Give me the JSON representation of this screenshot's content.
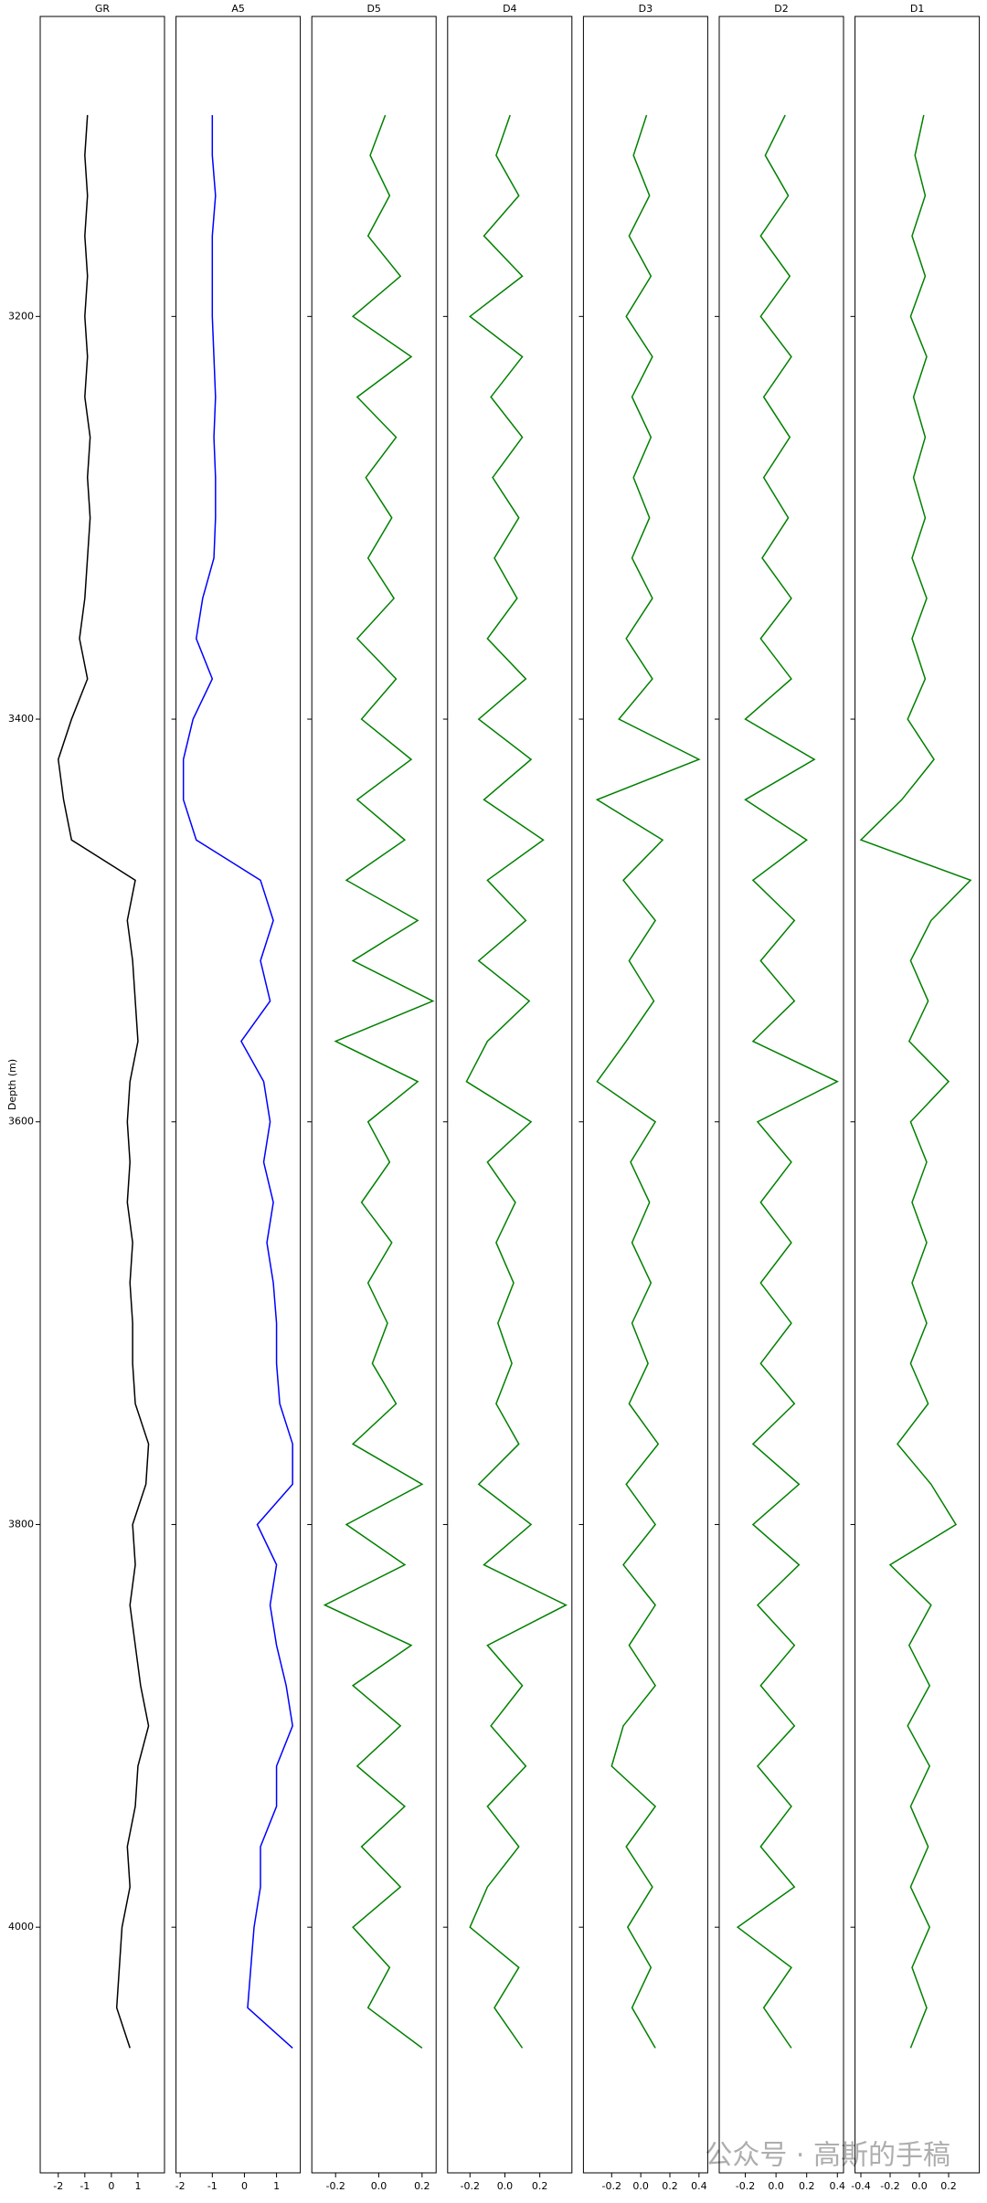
{
  "chart_data": {
    "type": "well_log",
    "ylabel": "Depth (m)",
    "ylim": [
      4122,
      3051
    ],
    "yticks": [
      3200,
      3400,
      3600,
      3800,
      4000
    ],
    "depth": [
      3100,
      3120,
      3140,
      3160,
      3180,
      3200,
      3220,
      3240,
      3260,
      3280,
      3300,
      3320,
      3340,
      3360,
      3380,
      3400,
      3420,
      3440,
      3460,
      3480,
      3500,
      3520,
      3540,
      3560,
      3580,
      3600,
      3620,
      3640,
      3660,
      3680,
      3700,
      3720,
      3740,
      3760,
      3780,
      3800,
      3820,
      3840,
      3860,
      3880,
      3900,
      3920,
      3940,
      3960,
      3980,
      4000,
      4020,
      4040,
      4060
    ],
    "tracks": [
      {
        "title": "GR",
        "color": "#000000",
        "xlim": [
          -2.68,
          2.0
        ],
        "xticks": [
          -2,
          -1,
          0,
          1
        ],
        "values": [
          -0.9,
          -1.0,
          -0.9,
          -1.0,
          -0.9,
          -1.0,
          -0.9,
          -1.0,
          -0.8,
          -0.9,
          -0.8,
          -0.9,
          -1.0,
          -1.2,
          -0.9,
          -1.5,
          -2.0,
          -1.8,
          -1.5,
          0.9,
          0.6,
          0.8,
          0.9,
          1.0,
          0.7,
          0.6,
          0.7,
          0.6,
          0.8,
          0.7,
          0.8,
          0.8,
          0.9,
          1.4,
          1.3,
          0.8,
          0.9,
          0.7,
          0.9,
          1.1,
          1.4,
          1.0,
          0.9,
          0.6,
          0.7,
          0.4,
          0.3,
          0.2,
          0.7
        ]
      },
      {
        "title": "A5",
        "color": "#0000ff",
        "xlim": [
          -2.13,
          1.74
        ],
        "xticks": [
          -2,
          -1,
          0,
          1
        ],
        "values": [
          -1.0,
          -1.0,
          -0.9,
          -1.0,
          -1.0,
          -1.0,
          -0.95,
          -0.9,
          -0.95,
          -0.9,
          -0.9,
          -0.95,
          -1.3,
          -1.5,
          -1.0,
          -1.6,
          -1.9,
          -1.9,
          -1.5,
          0.5,
          0.9,
          0.5,
          0.8,
          -0.1,
          0.6,
          0.8,
          0.6,
          0.9,
          0.7,
          0.9,
          1.0,
          1.0,
          1.1,
          1.5,
          1.5,
          0.4,
          1.0,
          0.8,
          1.0,
          1.3,
          1.5,
          1.0,
          1.0,
          0.5,
          0.5,
          0.3,
          0.2,
          0.1,
          1.5
        ]
      },
      {
        "title": "D5",
        "color": "#008000",
        "xlim": [
          -0.31,
          0.265
        ],
        "xticks": [
          -0.2,
          {
            "value": 0,
            "label": "0.0"
          },
          0.2
        ],
        "values": [
          0.03,
          -0.04,
          0.05,
          -0.05,
          0.1,
          -0.12,
          0.15,
          -0.1,
          0.08,
          -0.06,
          0.06,
          -0.05,
          0.07,
          -0.1,
          0.08,
          -0.08,
          0.15,
          -0.1,
          0.12,
          -0.15,
          0.18,
          -0.12,
          0.25,
          -0.2,
          0.18,
          -0.05,
          0.05,
          -0.08,
          0.06,
          -0.05,
          0.04,
          -0.03,
          0.08,
          -0.12,
          0.2,
          -0.15,
          0.12,
          -0.25,
          0.15,
          -0.12,
          0.1,
          -0.1,
          0.12,
          -0.08,
          0.1,
          -0.12,
          0.05,
          -0.05,
          0.2
        ]
      },
      {
        "title": "D4",
        "color": "#008000",
        "xlim": [
          -0.328,
          0.384
        ],
        "xticks": [
          -0.2,
          {
            "value": 0,
            "label": "0.0"
          },
          0.2
        ],
        "values": [
          0.03,
          -0.05,
          0.08,
          -0.12,
          0.1,
          -0.2,
          0.1,
          -0.08,
          0.1,
          -0.07,
          0.08,
          -0.06,
          0.07,
          -0.1,
          0.12,
          -0.15,
          0.15,
          -0.12,
          0.22,
          -0.1,
          0.12,
          -0.15,
          0.14,
          -0.1,
          -0.22,
          0.15,
          -0.1,
          0.06,
          -0.05,
          0.05,
          -0.04,
          0.04,
          -0.05,
          0.08,
          -0.15,
          0.15,
          -0.12,
          0.35,
          -0.1,
          0.1,
          -0.08,
          0.12,
          -0.1,
          0.08,
          -0.1,
          -0.2,
          0.08,
          -0.06,
          0.1
        ]
      },
      {
        "title": "D3",
        "color": "#008000",
        "xlim": [
          -0.394,
          0.46
        ],
        "xticks": [
          -0.2,
          {
            "value": 0,
            "label": "0.0"
          },
          0.2,
          0.4
        ],
        "values": [
          0.04,
          -0.05,
          0.06,
          -0.08,
          0.07,
          -0.1,
          0.08,
          -0.06,
          0.07,
          -0.05,
          0.06,
          -0.06,
          0.08,
          -0.1,
          0.08,
          -0.15,
          0.4,
          -0.3,
          0.15,
          -0.12,
          0.1,
          -0.08,
          0.09,
          -0.1,
          -0.3,
          0.1,
          -0.07,
          0.06,
          -0.06,
          0.07,
          -0.06,
          0.05,
          -0.08,
          0.12,
          -0.1,
          0.1,
          -0.12,
          0.1,
          -0.08,
          0.1,
          -0.12,
          -0.2,
          0.1,
          -0.1,
          0.08,
          -0.09,
          0.07,
          -0.06,
          0.1
        ]
      },
      {
        "title": "D2",
        "color": "#008000",
        "xlim": [
          -0.37,
          0.44
        ],
        "xticks": [
          -0.2,
          {
            "value": 0,
            "label": "0.0"
          },
          0.2,
          0.4
        ],
        "values": [
          0.06,
          -0.07,
          0.08,
          -0.1,
          0.09,
          -0.1,
          0.1,
          -0.08,
          0.09,
          -0.08,
          0.08,
          -0.09,
          0.1,
          -0.1,
          0.1,
          -0.2,
          0.25,
          -0.2,
          0.2,
          -0.15,
          0.12,
          -0.1,
          0.12,
          -0.15,
          0.4,
          -0.12,
          0.1,
          -0.1,
          0.1,
          -0.1,
          0.1,
          -0.1,
          0.12,
          -0.15,
          0.15,
          -0.15,
          0.15,
          -0.12,
          0.12,
          -0.1,
          0.12,
          -0.12,
          0.1,
          -0.1,
          0.12,
          -0.25,
          0.1,
          -0.08,
          0.1
        ]
      },
      {
        "title": "D1",
        "color": "#008000",
        "xlim": [
          -0.44,
          0.41
        ],
        "xticks": [
          -0.4,
          -0.2,
          {
            "value": 0,
            "label": "0.0"
          },
          0.2
        ],
        "values": [
          0.03,
          -0.03,
          0.04,
          -0.05,
          0.04,
          -0.06,
          0.05,
          -0.04,
          0.04,
          -0.04,
          0.04,
          -0.05,
          0.05,
          -0.05,
          0.04,
          -0.08,
          0.1,
          -0.12,
          -0.4,
          0.35,
          0.08,
          -0.06,
          0.06,
          -0.07,
          0.2,
          -0.06,
          0.05,
          -0.05,
          0.05,
          -0.05,
          0.05,
          -0.06,
          0.06,
          -0.15,
          0.08,
          0.25,
          -0.2,
          0.08,
          -0.07,
          0.07,
          -0.08,
          0.07,
          -0.06,
          0.06,
          -0.06,
          0.07,
          -0.05,
          0.05,
          -0.06
        ]
      }
    ]
  },
  "watermark": "公众号 · 高斯的手稿"
}
